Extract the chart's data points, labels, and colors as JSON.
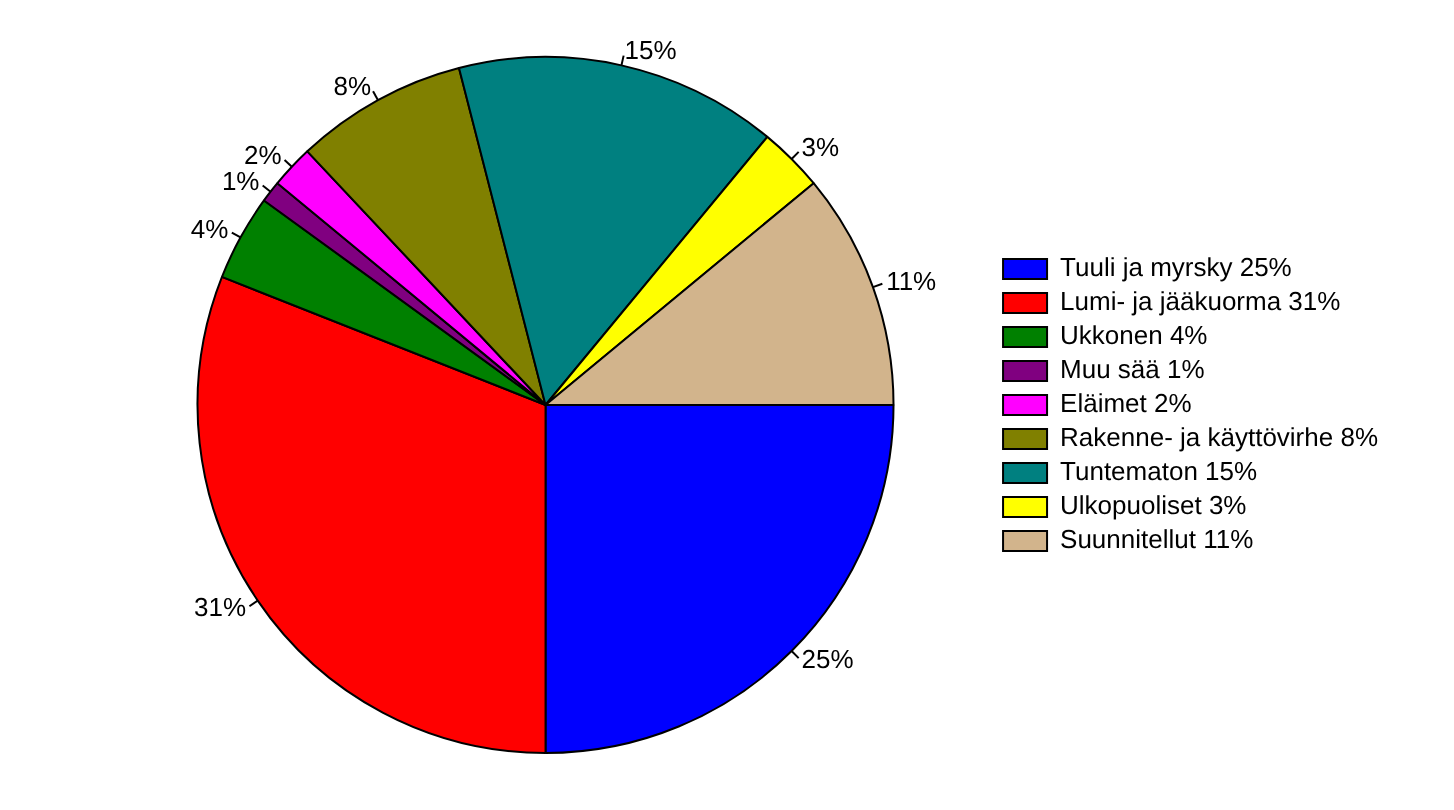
{
  "chart_data": {
    "type": "pie",
    "categories": [
      "Tuuli ja myrsky 25%",
      "Lumi- ja jääkuorma 31%",
      "Ukkonen 4%",
      "Muu sää 1%",
      "Eläimet 2%",
      "Rakenne- ja käyttövirhe 8%",
      "Tuntematon 15%",
      "Ulkopuoliset 3%",
      "Suunnitellut 11%"
    ],
    "values": [
      25,
      31,
      4,
      1,
      2,
      8,
      15,
      3,
      11
    ],
    "value_labels": [
      "25%",
      "31%",
      "4%",
      "1%",
      "2%",
      "8%",
      "15%",
      "3%",
      "11%"
    ],
    "colors": [
      "#0000ff",
      "#ff0000",
      "#008000",
      "#800080",
      "#ff00ff",
      "#808000",
      "#008080",
      "#ffff00",
      "#d2b48c"
    ],
    "legend": "right"
  }
}
